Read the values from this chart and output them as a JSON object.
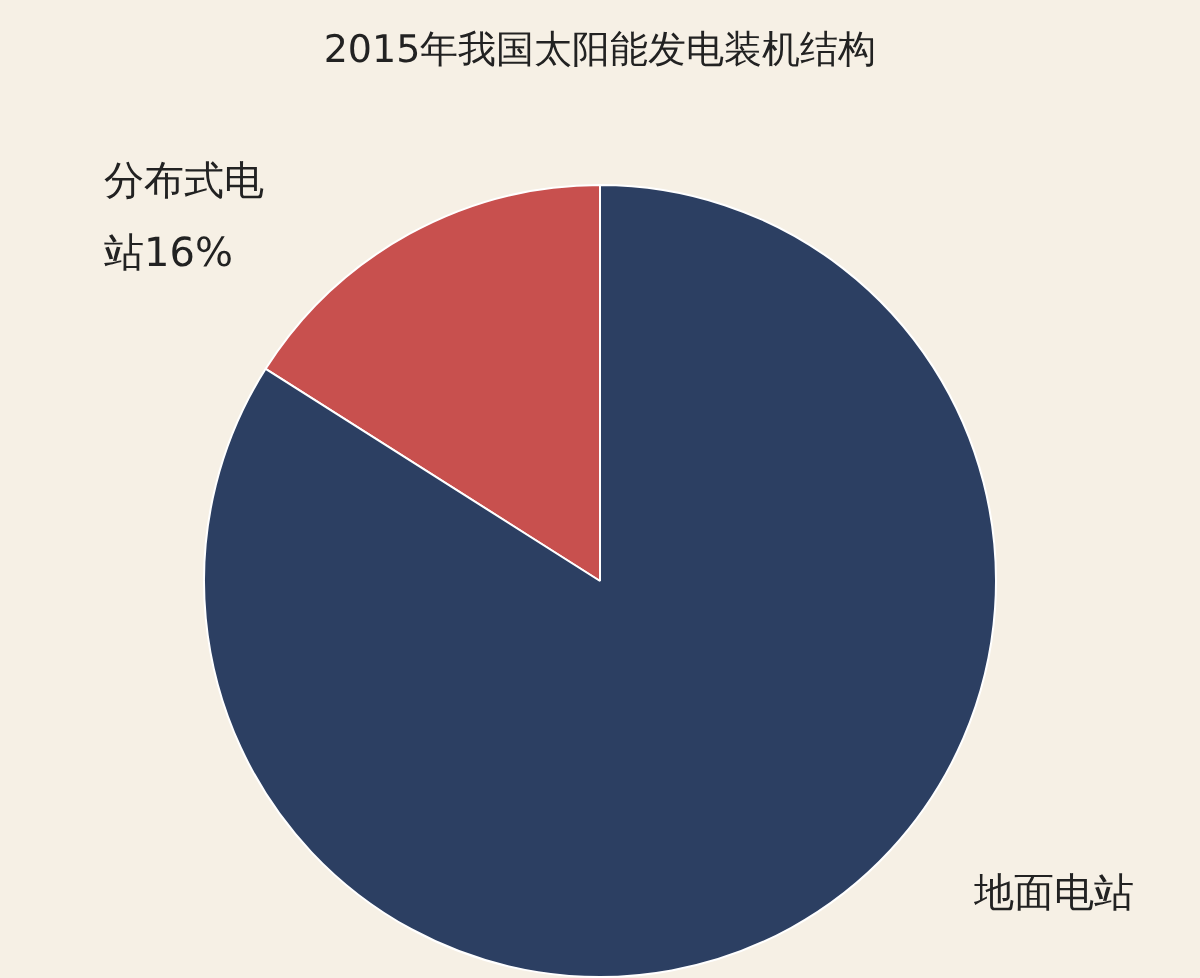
{
  "chart_data": {
    "type": "pie",
    "title": "2015年我国太阳能发电装机结构",
    "categories": [
      "分布式电站",
      "地面电站"
    ],
    "values": [
      16,
      84
    ],
    "colors": [
      "#c8504e",
      "#2c3f62"
    ],
    "value_labels": [
      "16%",
      null
    ],
    "legend": false
  }
}
